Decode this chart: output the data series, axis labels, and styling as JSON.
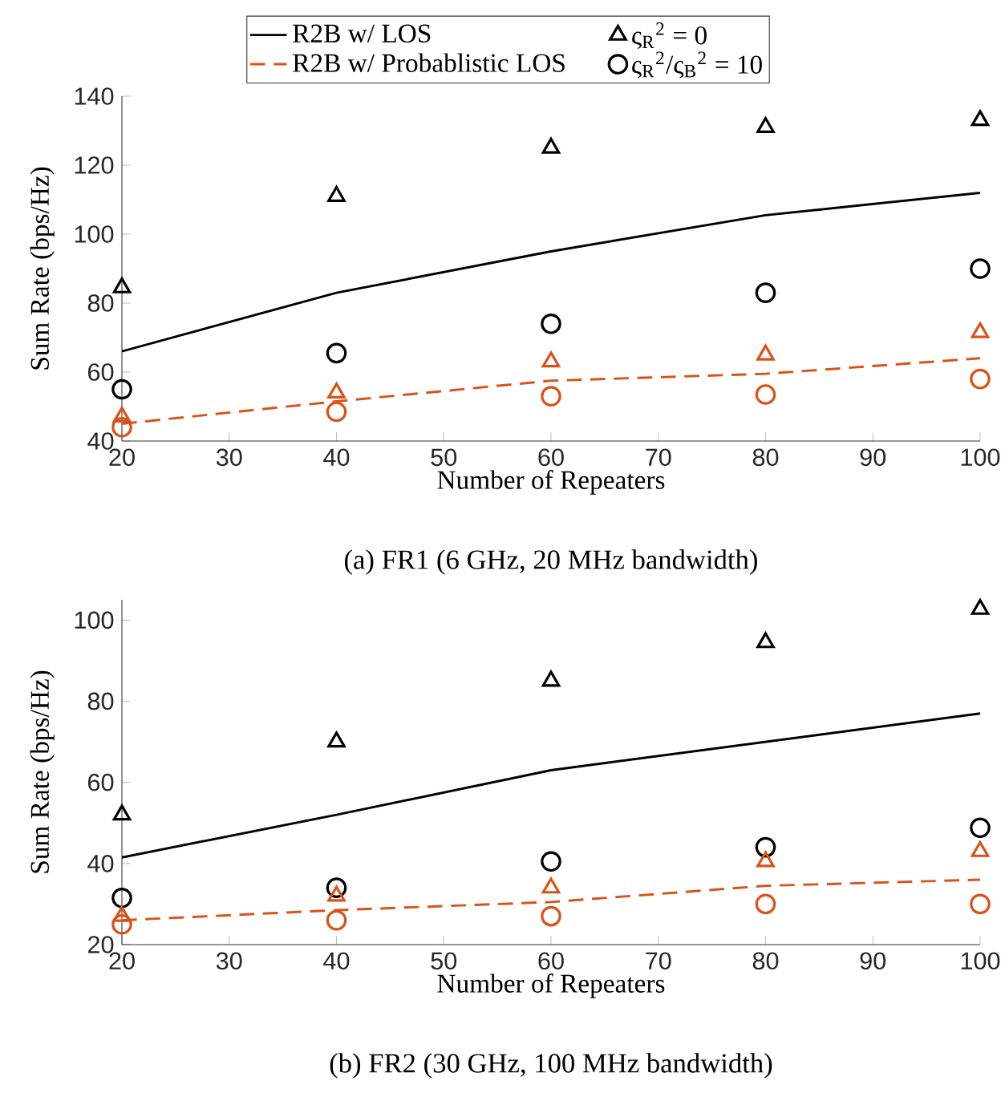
{
  "chart_data": [
    {
      "type": "line",
      "title": "(a) FR1 (6 GHz, 20 MHz bandwidth)",
      "xlabel": "Number of Repeaters",
      "ylabel": "Sum Rate (bps/Hz)",
      "x": [
        20,
        40,
        60,
        80,
        100
      ],
      "xlim": [
        20,
        100
      ],
      "ylim": [
        40,
        140
      ],
      "xticks": [
        20,
        30,
        40,
        50,
        60,
        70,
        80,
        90,
        100
      ],
      "yticks": [
        40,
        60,
        80,
        100,
        120,
        140
      ],
      "legend": "top",
      "series": [
        {
          "name": "R2B w/ LOS",
          "color": "#000000",
          "line_style": "solid",
          "marker": "none",
          "values": [
            66,
            83,
            95,
            105.5,
            112
          ]
        },
        {
          "name": "ς$_{R}$$^{2}$ = 0",
          "type": "scatter",
          "color": "#000000",
          "marker": "triangle",
          "values": [
            84.5,
            111,
            125,
            131,
            133
          ]
        },
        {
          "name": "R2B w/ Probablistic LOS",
          "color": "#d95319",
          "line_style": "dashed",
          "marker": "none",
          "values": [
            45,
            51.5,
            57.5,
            59.5,
            64
          ]
        },
        {
          "name": "ς$_{R}$$^{2}$/ς$_{B}$$^{2}$ = 10",
          "type": "scatter",
          "color": "#000000",
          "marker": "circle",
          "values": [
            55,
            65.5,
            74,
            83,
            90
          ]
        },
        {
          "type": "scatter",
          "color": "#d95319",
          "marker": "triangle",
          "values": [
            47,
            54,
            63,
            65,
            71.5
          ]
        },
        {
          "type": "scatter",
          "color": "#d95319",
          "marker": "circle",
          "values": [
            44,
            48.5,
            53,
            53.5,
            58
          ]
        }
      ]
    },
    {
      "type": "line",
      "title": "(b) FR2 (30 GHz, 100 MHz bandwidth)",
      "xlabel": "Number of Repeaters",
      "ylabel": "Sum Rate (bps/Hz)",
      "x": [
        20,
        40,
        60,
        80,
        100
      ],
      "xlim": [
        20,
        100
      ],
      "ylim": [
        20,
        105
      ],
      "xticks": [
        20,
        30,
        40,
        50,
        60,
        70,
        80,
        90,
        100
      ],
      "yticks": [
        20,
        40,
        60,
        80,
        100
      ],
      "series": [
        {
          "color": "#000000",
          "line_style": "solid",
          "marker": "none",
          "values": [
            41.5,
            52,
            63,
            70,
            77
          ]
        },
        {
          "type": "scatter",
          "color": "#000000",
          "marker": "triangle",
          "values": [
            52,
            70,
            85,
            94.5,
            102.7
          ]
        },
        {
          "color": "#d95319",
          "line_style": "dashed",
          "marker": "none",
          "values": [
            26,
            28.5,
            30.5,
            34.5,
            36
          ]
        },
        {
          "type": "scatter",
          "color": "#000000",
          "marker": "circle",
          "values": [
            31.5,
            34,
            40.5,
            44,
            48.8
          ]
        },
        {
          "type": "scatter",
          "color": "#d95319",
          "marker": "triangle",
          "values": [
            27,
            32,
            34,
            40.5,
            43
          ]
        },
        {
          "type": "scatter",
          "color": "#d95319",
          "marker": "circle",
          "values": [
            25,
            26,
            27,
            30,
            30
          ]
        }
      ]
    }
  ]
}
